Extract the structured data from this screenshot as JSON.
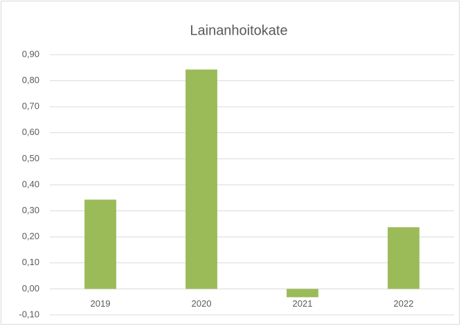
{
  "chart_data": {
    "type": "bar",
    "title": "Lainanhoitokate",
    "categories": [
      "2019",
      "2020",
      "2021",
      "2022"
    ],
    "values": [
      0.343,
      0.843,
      -0.032,
      0.237
    ],
    "color": "#9bbb59",
    "ylim": [
      -0.1,
      0.9
    ],
    "yticks": [
      {
        "value": -0.1,
        "label": "-0,10"
      },
      {
        "value": 0,
        "label": "0,00"
      },
      {
        "value": 0.1,
        "label": "0,10"
      },
      {
        "value": 0.2,
        "label": "0,20"
      },
      {
        "value": 0.3,
        "label": "0,30"
      },
      {
        "value": 0.4,
        "label": "0,40"
      },
      {
        "value": 0.5,
        "label": "0,50"
      },
      {
        "value": 0.6,
        "label": "0,60"
      },
      {
        "value": 0.7,
        "label": "0,70"
      },
      {
        "value": 0.8,
        "label": "0,80"
      },
      {
        "value": 0.9,
        "label": "0,90"
      }
    ],
    "grid": true
  }
}
